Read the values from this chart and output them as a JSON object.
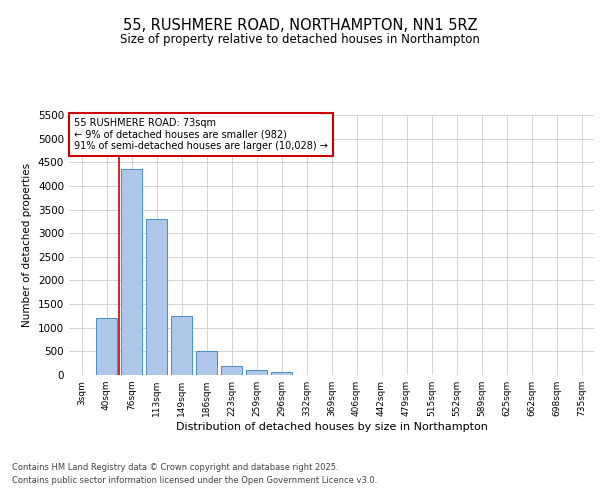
{
  "title_line1": "55, RUSHMERE ROAD, NORTHAMPTON, NN1 5RZ",
  "title_line2": "Size of property relative to detached houses in Northampton",
  "xlabel": "Distribution of detached houses by size in Northampton",
  "ylabel": "Number of detached properties",
  "categories": [
    "3sqm",
    "40sqm",
    "76sqm",
    "113sqm",
    "149sqm",
    "186sqm",
    "223sqm",
    "259sqm",
    "296sqm",
    "332sqm",
    "369sqm",
    "406sqm",
    "442sqm",
    "479sqm",
    "515sqm",
    "552sqm",
    "589sqm",
    "625sqm",
    "662sqm",
    "698sqm",
    "735sqm"
  ],
  "values": [
    0,
    1200,
    4350,
    3300,
    1250,
    500,
    200,
    100,
    60,
    0,
    0,
    0,
    0,
    0,
    0,
    0,
    0,
    0,
    0,
    0,
    0
  ],
  "bar_color": "#aec6e8",
  "bar_edge_color": "#4a90c4",
  "property_label": "55 RUSHMERE ROAD: 73sqm",
  "pct_smaller": "9% of detached houses are smaller (982)",
  "pct_larger": "91% of semi-detached houses are larger (10,028)",
  "annotation_box_color": "#cc0000",
  "red_line_x": 1.5,
  "ylim": [
    0,
    5500
  ],
  "yticks": [
    0,
    500,
    1000,
    1500,
    2000,
    2500,
    3000,
    3500,
    4000,
    4500,
    5000,
    5500
  ],
  "background_color": "#ffffff",
  "grid_color": "#cccccc",
  "footer_line1": "Contains HM Land Registry data © Crown copyright and database right 2025.",
  "footer_line2": "Contains public sector information licensed under the Open Government Licence v3.0."
}
